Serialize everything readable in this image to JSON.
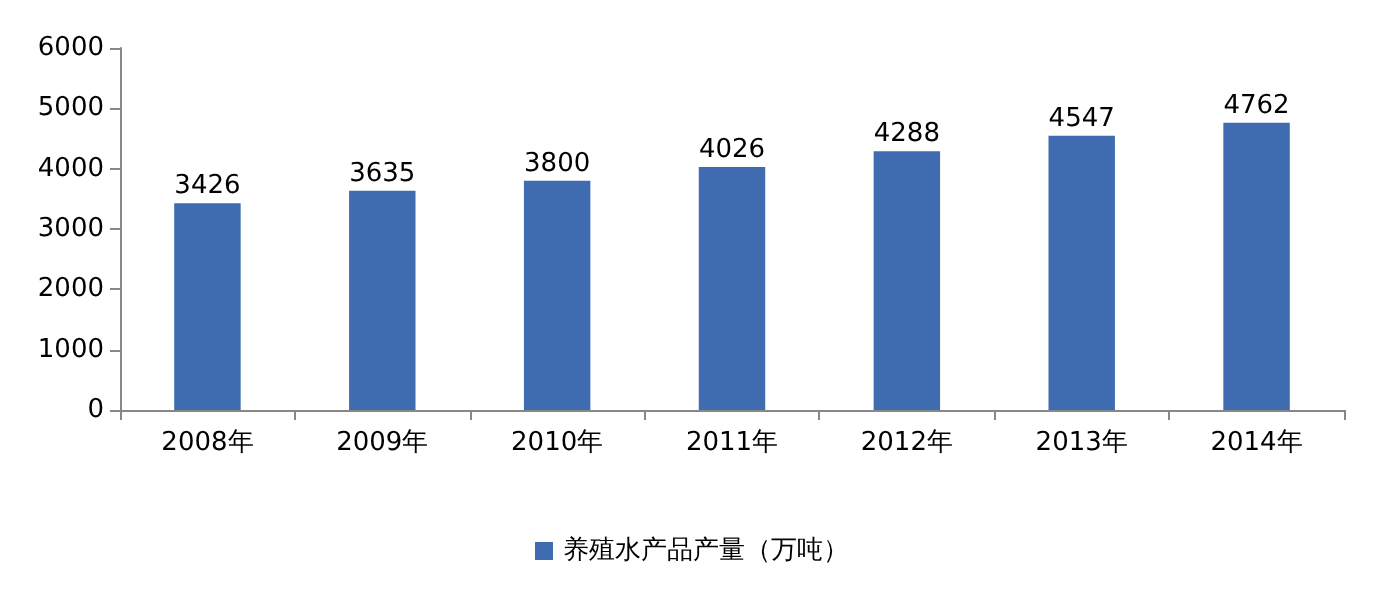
{
  "chart_data": {
    "type": "bar",
    "categories": [
      "2008年",
      "2009年",
      "2010年",
      "2011年",
      "2012年",
      "2013年",
      "2014年"
    ],
    "series": [
      {
        "name": "养殖水产品产量（万吨）",
        "color": "#3f6cb0",
        "values": [
          3426,
          3635,
          3800,
          4026,
          4288,
          4547,
          4762
        ]
      }
    ],
    "ylim": [
      0,
      6000
    ],
    "yticks": [
      0,
      1000,
      2000,
      3000,
      4000,
      5000,
      6000
    ],
    "grid": false,
    "legend": "bottom",
    "data_labels": true
  }
}
